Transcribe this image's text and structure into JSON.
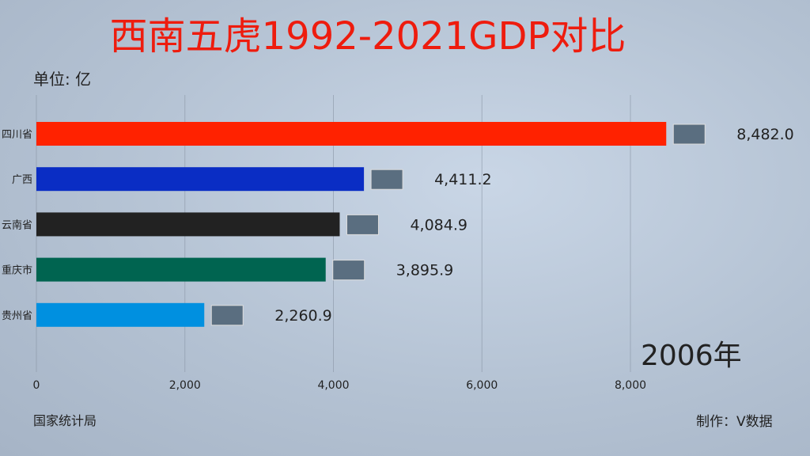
{
  "title": "西南五虎1992-2021GDP对比",
  "unit_label": "单位: 亿",
  "source": "国家统计局",
  "maker": "制作：V数据",
  "chart_data": {
    "type": "bar",
    "orientation": "horizontal",
    "year_label": "2006年",
    "categories": [
      "四川省",
      "广西",
      "云南省",
      "重庆市",
      "贵州省"
    ],
    "values": [
      8482.0,
      4411.2,
      4084.9,
      3895.9,
      2260.9
    ],
    "value_labels": [
      "8,482.0",
      "4,411.2",
      "4,084.9",
      "3,895.9",
      "2,260.9"
    ],
    "colors": [
      "#ff2200",
      "#0a2dc4",
      "#222222",
      "#006450",
      "#0090e0"
    ],
    "xlim": [
      0,
      8500
    ],
    "xticks": [
      0,
      2000,
      4000,
      6000,
      8000
    ],
    "xtick_labels": [
      "0",
      "2,000",
      "4,000",
      "6,000",
      "8,000"
    ],
    "grid": true
  }
}
